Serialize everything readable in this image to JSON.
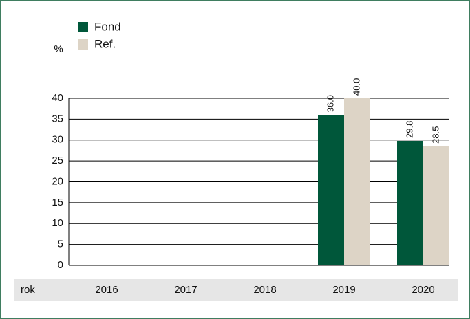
{
  "chart_data": {
    "type": "bar",
    "y_label": "%",
    "x_label": "rok",
    "categories": [
      "2016",
      "2017",
      "2018",
      "2019",
      "2020"
    ],
    "series": [
      {
        "name": "Fond",
        "color": "#00573a",
        "values": [
          null,
          null,
          null,
          36.0,
          29.8
        ],
        "value_labels": [
          null,
          null,
          null,
          "36.0",
          "29.8"
        ]
      },
      {
        "name": "Ref.",
        "color": "#ddd4c6",
        "values": [
          null,
          null,
          null,
          40.0,
          28.5
        ],
        "value_labels": [
          null,
          null,
          null,
          "40.0",
          "28.5"
        ]
      }
    ],
    "ylim": [
      0,
      40
    ],
    "yticks": [
      0,
      5,
      10,
      15,
      20,
      25,
      30,
      35,
      40
    ],
    "grid": true
  }
}
